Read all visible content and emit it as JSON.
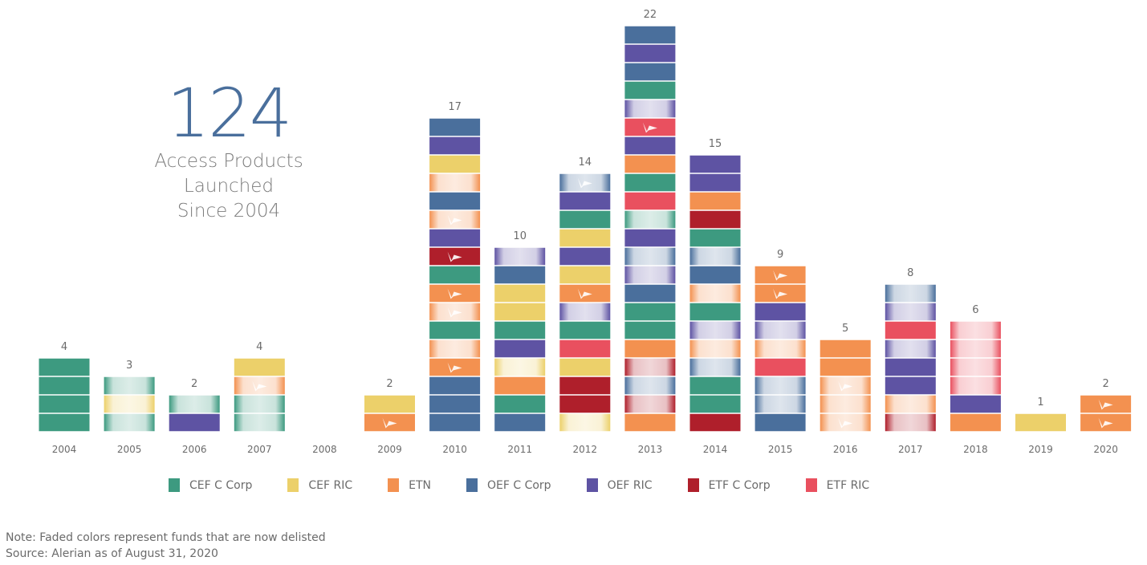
{
  "headline": {
    "number": "124",
    "lines": [
      "Access Products",
      "Launched",
      "Since 2004"
    ]
  },
  "footnote": {
    "note": "Note: Faded colors represent funds that are now delisted",
    "source": "Source: Alerian as of August 31, 2020"
  },
  "chart_data": {
    "type": "bar",
    "subtype": "stacked-unit",
    "title": "",
    "xlabel": "",
    "ylabel": "",
    "grid": false,
    "legend_position": "bottom",
    "categories": [
      "2004",
      "2005",
      "2006",
      "2007",
      "2008",
      "2009",
      "2010",
      "2011",
      "2012",
      "2013",
      "2014",
      "2015",
      "2016",
      "2017",
      "2018",
      "2019",
      "2020"
    ],
    "totals": [
      4,
      3,
      2,
      4,
      0,
      2,
      17,
      10,
      14,
      22,
      15,
      9,
      5,
      8,
      6,
      1,
      2
    ],
    "legend": [
      {
        "key": "CEF_C",
        "label": "CEF C Corp",
        "color": "#3d9a80"
      },
      {
        "key": "CEF_RIC",
        "label": "CEF RIC",
        "color": "#ecd06a"
      },
      {
        "key": "ETN",
        "label": "ETN",
        "color": "#f39150"
      },
      {
        "key": "OEF_C",
        "label": "OEF C Corp",
        "color": "#4a6f9c"
      },
      {
        "key": "OEF_RIC",
        "label": "OEF RIC",
        "color": "#5e53a3"
      },
      {
        "key": "ETF_C",
        "label": "ETF C Corp",
        "color": "#af1f2b"
      },
      {
        "key": "ETF_RIC",
        "label": "ETF RIC",
        "color": "#e9505f"
      }
    ],
    "segment_note": "Segments listed bottom-to-top; d = delisted (faded), m = logo mark",
    "stacks": [
      [
        {
          "t": "CEF_C"
        },
        {
          "t": "CEF_C"
        },
        {
          "t": "CEF_C"
        },
        {
          "t": "CEF_C"
        }
      ],
      [
        {
          "t": "CEF_C",
          "d": true
        },
        {
          "t": "CEF_RIC",
          "d": true
        },
        {
          "t": "CEF_C",
          "d": true
        }
      ],
      [
        {
          "t": "OEF_RIC"
        },
        {
          "t": "CEF_C",
          "d": true
        }
      ],
      [
        {
          "t": "CEF_C",
          "d": true
        },
        {
          "t": "CEF_C",
          "d": true
        },
        {
          "t": "ETN",
          "d": true,
          "m": true
        },
        {
          "t": "CEF_RIC"
        }
      ],
      [],
      [
        {
          "t": "ETN",
          "m": true
        },
        {
          "t": "CEF_RIC"
        }
      ],
      [
        {
          "t": "OEF_C"
        },
        {
          "t": "OEF_C"
        },
        {
          "t": "OEF_C"
        },
        {
          "t": "ETN",
          "m": true
        },
        {
          "t": "ETN",
          "d": true
        },
        {
          "t": "CEF_C"
        },
        {
          "t": "ETN",
          "d": true,
          "m": true
        },
        {
          "t": "ETN",
          "m": true
        },
        {
          "t": "CEF_C"
        },
        {
          "t": "ETF_C",
          "m": true
        },
        {
          "t": "OEF_RIC"
        },
        {
          "t": "ETN",
          "d": true,
          "m": true
        },
        {
          "t": "OEF_C"
        },
        {
          "t": "ETN",
          "d": true
        },
        {
          "t": "CEF_RIC"
        },
        {
          "t": "OEF_RIC"
        },
        {
          "t": "OEF_C"
        }
      ],
      [
        {
          "t": "OEF_C"
        },
        {
          "t": "CEF_C"
        },
        {
          "t": "ETN"
        },
        {
          "t": "CEF_RIC",
          "d": true
        },
        {
          "t": "OEF_RIC"
        },
        {
          "t": "CEF_C"
        },
        {
          "t": "CEF_RIC"
        },
        {
          "t": "CEF_RIC"
        },
        {
          "t": "OEF_C"
        },
        {
          "t": "OEF_RIC",
          "d": true
        }
      ],
      [
        {
          "t": "CEF_RIC",
          "d": true
        },
        {
          "t": "ETF_C"
        },
        {
          "t": "ETF_C"
        },
        {
          "t": "CEF_RIC"
        },
        {
          "t": "ETF_RIC"
        },
        {
          "t": "CEF_C"
        },
        {
          "t": "OEF_RIC",
          "d": true
        },
        {
          "t": "ETN",
          "m": true
        },
        {
          "t": "CEF_RIC"
        },
        {
          "t": "OEF_RIC"
        },
        {
          "t": "CEF_RIC"
        },
        {
          "t": "CEF_C"
        },
        {
          "t": "OEF_RIC"
        },
        {
          "t": "OEF_C",
          "d": true,
          "m": true
        }
      ],
      [
        {
          "t": "ETN"
        },
        {
          "t": "ETF_C",
          "d": true
        },
        {
          "t": "OEF_C",
          "d": true
        },
        {
          "t": "ETF_C",
          "d": true
        },
        {
          "t": "ETN"
        },
        {
          "t": "CEF_C"
        },
        {
          "t": "CEF_C"
        },
        {
          "t": "OEF_C"
        },
        {
          "t": "OEF_RIC",
          "d": true
        },
        {
          "t": "OEF_C",
          "d": true
        },
        {
          "t": "OEF_RIC"
        },
        {
          "t": "CEF_C",
          "d": true
        },
        {
          "t": "ETF_RIC"
        },
        {
          "t": "CEF_C"
        },
        {
          "t": "ETN"
        },
        {
          "t": "OEF_RIC"
        },
        {
          "t": "ETF_RIC",
          "m": true
        },
        {
          "t": "OEF_RIC",
          "d": true
        },
        {
          "t": "CEF_C"
        },
        {
          "t": "OEF_C"
        },
        {
          "t": "OEF_RIC"
        },
        {
          "t": "OEF_C"
        }
      ],
      [
        {
          "t": "ETF_C"
        },
        {
          "t": "CEF_C"
        },
        {
          "t": "CEF_C"
        },
        {
          "t": "OEF_C",
          "d": true
        },
        {
          "t": "ETN",
          "d": true
        },
        {
          "t": "OEF_RIC",
          "d": true
        },
        {
          "t": "CEF_C"
        },
        {
          "t": "ETN",
          "d": true
        },
        {
          "t": "OEF_C"
        },
        {
          "t": "OEF_C",
          "d": true
        },
        {
          "t": "CEF_C"
        },
        {
          "t": "ETF_C"
        },
        {
          "t": "ETN"
        },
        {
          "t": "OEF_RIC"
        },
        {
          "t": "OEF_RIC"
        }
      ],
      [
        {
          "t": "OEF_C"
        },
        {
          "t": "OEF_C",
          "d": true
        },
        {
          "t": "OEF_C",
          "d": true
        },
        {
          "t": "ETF_RIC"
        },
        {
          "t": "ETN",
          "d": true
        },
        {
          "t": "OEF_RIC",
          "d": true
        },
        {
          "t": "OEF_RIC"
        },
        {
          "t": "ETN",
          "m": true
        },
        {
          "t": "ETN",
          "m": true
        }
      ],
      [
        {
          "t": "ETN",
          "d": true,
          "m": true
        },
        {
          "t": "ETN",
          "d": true
        },
        {
          "t": "ETN",
          "d": true,
          "m": true
        },
        {
          "t": "ETN"
        },
        {
          "t": "ETN"
        }
      ],
      [
        {
          "t": "ETF_C",
          "d": true
        },
        {
          "t": "ETN",
          "d": true
        },
        {
          "t": "OEF_RIC"
        },
        {
          "t": "OEF_RIC"
        },
        {
          "t": "OEF_RIC",
          "d": true
        },
        {
          "t": "ETF_RIC"
        },
        {
          "t": "OEF_RIC",
          "d": true
        },
        {
          "t": "OEF_C",
          "d": true
        }
      ],
      [
        {
          "t": "ETN"
        },
        {
          "t": "OEF_RIC"
        },
        {
          "t": "ETF_RIC",
          "d": true
        },
        {
          "t": "ETF_RIC",
          "d": true
        },
        {
          "t": "ETF_RIC",
          "d": true
        },
        {
          "t": "ETF_RIC",
          "d": true
        }
      ],
      [
        {
          "t": "CEF_RIC"
        }
      ],
      [
        {
          "t": "ETN",
          "m": true
        },
        {
          "t": "ETN",
          "m": true
        }
      ]
    ]
  }
}
